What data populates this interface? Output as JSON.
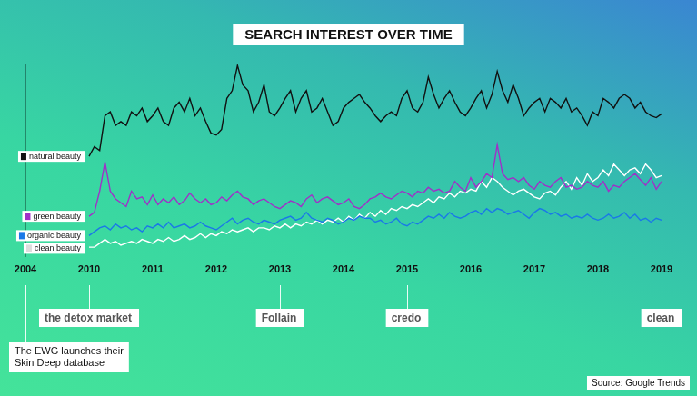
{
  "chart_data": {
    "type": "line",
    "title": "SEARCH INTEREST OVER TIME",
    "categories": [
      "2004",
      null,
      null,
      null,
      null,
      null,
      null,
      null,
      null,
      null,
      null,
      null,
      "2010",
      null,
      null,
      null,
      null,
      null,
      null,
      null,
      null,
      null,
      null,
      null,
      "2011",
      null,
      null,
      null,
      null,
      null,
      null,
      null,
      null,
      null,
      null,
      null,
      "2012",
      null,
      null,
      null,
      null,
      null,
      null,
      null,
      null,
      null,
      null,
      null,
      "2013",
      null,
      null,
      null,
      null,
      null,
      null,
      null,
      null,
      null,
      null,
      null,
      "2014",
      null,
      null,
      null,
      null,
      null,
      null,
      null,
      null,
      null,
      null,
      null,
      "2015",
      null,
      null,
      null,
      null,
      null,
      null,
      null,
      null,
      null,
      null,
      null,
      "2016",
      null,
      null,
      null,
      null,
      null,
      null,
      null,
      null,
      null,
      null,
      null,
      "2017",
      null,
      null,
      null,
      null,
      null,
      null,
      null,
      null,
      null,
      null,
      null,
      "2018",
      null,
      null,
      null,
      null,
      null,
      null,
      null,
      null,
      null,
      null,
      null,
      "2019"
    ],
    "series": [
      {
        "name": "natural beauty",
        "color": "#111111",
        "values": [
          null,
          null,
          null,
          null,
          null,
          null,
          null,
          null,
          null,
          null,
          null,
          null,
          52,
          57,
          55,
          73,
          75,
          68,
          70,
          68,
          75,
          73,
          77,
          70,
          73,
          77,
          70,
          68,
          77,
          80,
          75,
          82,
          73,
          77,
          70,
          64,
          63,
          66,
          82,
          86,
          99,
          89,
          86,
          75,
          80,
          89,
          75,
          73,
          77,
          82,
          86,
          75,
          82,
          86,
          75,
          77,
          82,
          75,
          68,
          70,
          77,
          80,
          82,
          84,
          80,
          77,
          73,
          70,
          73,
          75,
          73,
          82,
          86,
          77,
          75,
          80,
          93,
          84,
          77,
          82,
          86,
          80,
          75,
          73,
          77,
          82,
          86,
          77,
          84,
          96,
          86,
          80,
          89,
          82,
          73,
          77,
          80,
          82,
          75,
          82,
          80,
          77,
          82,
          75,
          77,
          73,
          68,
          75,
          73,
          82,
          80,
          77,
          82,
          84,
          82,
          77,
          80,
          75,
          73,
          72,
          74
        ]
      },
      {
        "name": "green beauty",
        "color": "#a030c8",
        "values": [
          null,
          null,
          null,
          null,
          null,
          null,
          null,
          null,
          null,
          null,
          null,
          null,
          21,
          23,
          34,
          49,
          34,
          30,
          28,
          26,
          34,
          30,
          31,
          27,
          32,
          27,
          30,
          28,
          31,
          27,
          29,
          33,
          30,
          28,
          30,
          27,
          28,
          31,
          29,
          32,
          34,
          31,
          30,
          27,
          29,
          30,
          28,
          26,
          25,
          27,
          29,
          28,
          26,
          30,
          32,
          28,
          30,
          31,
          29,
          27,
          28,
          30,
          26,
          25,
          27,
          30,
          31,
          33,
          31,
          30,
          32,
          34,
          33,
          31,
          34,
          33,
          36,
          34,
          35,
          33,
          34,
          39,
          36,
          34,
          41,
          36,
          39,
          43,
          41,
          58,
          43,
          40,
          41,
          39,
          41,
          37,
          35,
          39,
          37,
          36,
          39,
          41,
          36,
          37,
          35,
          36,
          39,
          37,
          36,
          39,
          34,
          37,
          36,
          39,
          41,
          43,
          40,
          37,
          41,
          35,
          39
        ]
      },
      {
        "name": "organic beauty",
        "color": "#1a78e8",
        "values": [
          null,
          null,
          null,
          null,
          null,
          null,
          null,
          null,
          null,
          null,
          null,
          null,
          11,
          13,
          15,
          16,
          14,
          17,
          15,
          16,
          14,
          15,
          13,
          16,
          15,
          17,
          15,
          18,
          15,
          16,
          17,
          15,
          16,
          18,
          16,
          15,
          14,
          16,
          18,
          20,
          17,
          19,
          20,
          18,
          17,
          19,
          18,
          17,
          19,
          20,
          21,
          19,
          20,
          23,
          20,
          19,
          18,
          20,
          19,
          17,
          18,
          20,
          19,
          21,
          20,
          20,
          18,
          19,
          17,
          18,
          20,
          17,
          16,
          18,
          17,
          19,
          21,
          20,
          22,
          20,
          23,
          21,
          20,
          21,
          23,
          24,
          22,
          25,
          23,
          25,
          24,
          22,
          23,
          24,
          22,
          20,
          23,
          25,
          24,
          22,
          23,
          21,
          22,
          20,
          21,
          20,
          22,
          20,
          19,
          20,
          22,
          20,
          21,
          23,
          20,
          22,
          19,
          20,
          18,
          20,
          19
        ]
      },
      {
        "name": "clean beauty",
        "color": "#ffffff",
        "values": [
          null,
          null,
          null,
          null,
          null,
          null,
          null,
          null,
          null,
          null,
          null,
          null,
          5,
          5,
          7,
          9,
          7,
          8,
          6,
          7,
          8,
          7,
          9,
          8,
          7,
          9,
          8,
          10,
          8,
          9,
          11,
          9,
          10,
          12,
          10,
          12,
          11,
          13,
          12,
          14,
          13,
          14,
          15,
          13,
          15,
          15,
          14,
          16,
          15,
          17,
          15,
          17,
          16,
          18,
          17,
          19,
          17,
          19,
          18,
          20,
          18,
          21,
          19,
          22,
          20,
          23,
          21,
          24,
          22,
          25,
          24,
          26,
          25,
          27,
          26,
          28,
          30,
          28,
          31,
          30,
          33,
          31,
          34,
          33,
          35,
          34,
          39,
          36,
          41,
          39,
          36,
          34,
          32,
          34,
          35,
          33,
          31,
          30,
          33,
          34,
          32,
          36,
          39,
          35,
          41,
          37,
          43,
          39,
          41,
          45,
          42,
          48,
          45,
          42,
          45,
          46,
          43,
          48,
          45,
          41,
          42
        ]
      }
    ],
    "ylim": [
      0,
      100
    ],
    "grid": false,
    "legend": "left",
    "tick_labels": "x",
    "annotations": [
      {
        "x": "2004",
        "text": "The EWG launches their Skin Deep database"
      },
      {
        "x": "2010",
        "text": "the detox market"
      },
      {
        "x": "2013",
        "text": "Follain"
      },
      {
        "x": "2015",
        "text": "credo"
      },
      {
        "x": "2019",
        "text": "clean"
      }
    ],
    "source": "Source: Google Trends"
  }
}
